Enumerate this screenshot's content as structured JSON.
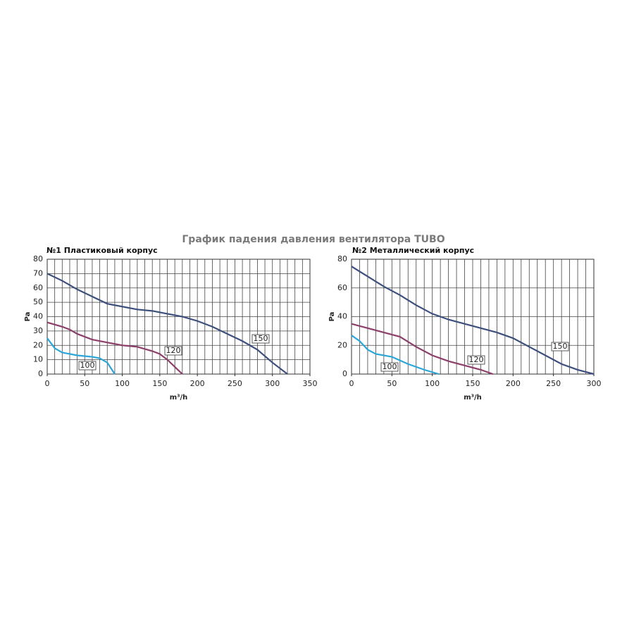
{
  "title": "График падения давления вентилятора TUBO",
  "chart_data": [
    {
      "type": "line",
      "subtitle": "№1 Пластиковый корпус",
      "x_label": "m³/h",
      "y_label": "Pa",
      "xlim": [
        0,
        350
      ],
      "xticks": [
        0,
        50,
        100,
        150,
        200,
        250,
        300,
        350
      ],
      "ylim": [
        0,
        80
      ],
      "yticks": [
        0,
        10,
        20,
        30,
        40,
        50,
        60,
        70,
        80
      ],
      "x_minor_step": 10,
      "grid": true,
      "series": [
        {
          "name": "150",
          "color": "#3d4f7c",
          "x": [
            0,
            20,
            40,
            60,
            80,
            100,
            120,
            140,
            160,
            180,
            200,
            220,
            240,
            260,
            280,
            300,
            320
          ],
          "values": [
            70,
            65,
            59,
            54,
            49,
            47,
            45,
            44,
            42,
            40,
            37,
            33,
            28,
            23,
            17,
            8,
            0
          ]
        },
        {
          "name": "120",
          "color": "#8b3f6a",
          "x": [
            0,
            20,
            30,
            40,
            60,
            80,
            100,
            120,
            140,
            150,
            160,
            170,
            180
          ],
          "values": [
            36,
            33,
            31,
            28,
            24,
            22,
            20,
            19,
            16,
            14,
            10,
            5,
            0
          ]
        },
        {
          "name": "100",
          "color": "#2aa6d8",
          "x": [
            0,
            10,
            20,
            30,
            40,
            60,
            70,
            80,
            85,
            90
          ],
          "values": [
            25,
            18,
            15,
            14,
            13,
            12,
            11,
            8,
            4,
            0
          ]
        }
      ]
    },
    {
      "type": "line",
      "subtitle": "№2 Металлический корпус",
      "x_label": "m³/h",
      "y_label": "Pa",
      "xlim": [
        0,
        300
      ],
      "xticks": [
        0,
        50,
        100,
        150,
        200,
        250,
        300
      ],
      "ylim": [
        0,
        80
      ],
      "yticks": [
        0,
        20,
        40,
        60,
        80
      ],
      "x_minor_step": 10,
      "grid": true,
      "series": [
        {
          "name": "150",
          "color": "#3d4f7c",
          "x": [
            0,
            20,
            40,
            60,
            80,
            100,
            120,
            140,
            160,
            180,
            200,
            220,
            240,
            260,
            280,
            300
          ],
          "values": [
            75,
            68,
            61,
            55,
            48,
            42,
            38,
            35,
            32,
            29,
            25,
            19,
            13,
            7,
            3,
            0
          ]
        },
        {
          "name": "120",
          "color": "#8b3f6a",
          "x": [
            0,
            20,
            40,
            60,
            80,
            100,
            120,
            140,
            160,
            175
          ],
          "values": [
            35,
            32,
            29,
            26,
            19,
            13,
            9,
            6,
            3,
            0
          ]
        },
        {
          "name": "100",
          "color": "#2aa6d8",
          "x": [
            0,
            10,
            20,
            30,
            50,
            70,
            90,
            108
          ],
          "values": [
            27,
            23,
            17,
            14,
            12,
            7,
            3,
            0
          ]
        }
      ]
    }
  ]
}
